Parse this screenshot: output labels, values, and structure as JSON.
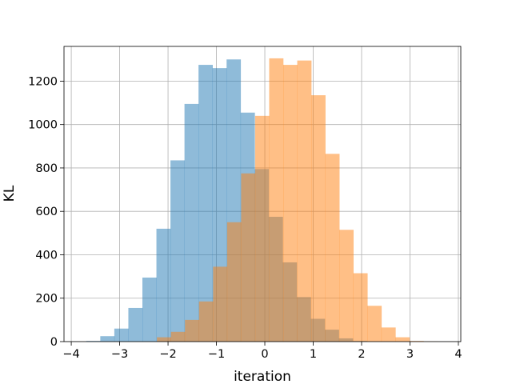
{
  "chart_data": {
    "type": "bar",
    "subtype": "overlapping-histogram",
    "title": "",
    "xlabel": "iteration",
    "ylabel": "KL",
    "xlim": [
      -4.15,
      4.05
    ],
    "ylim": [
      0,
      1360
    ],
    "xticks": [
      -4,
      -3,
      -2,
      -1,
      0,
      1,
      2,
      3,
      4
    ],
    "yticks": [
      0,
      200,
      400,
      600,
      800,
      1000,
      1200
    ],
    "grid": true,
    "legend": "none",
    "series": [
      {
        "color": "#1f77b4",
        "opacity": 0.5,
        "bin_edges": [
          -3.69,
          -3.4,
          -3.11,
          -2.82,
          -2.53,
          -2.24,
          -1.95,
          -1.66,
          -1.37,
          -1.08,
          -0.79,
          -0.5,
          -0.21,
          0.08,
          0.37,
          0.66,
          0.95,
          1.24,
          1.53,
          1.82,
          2.11
        ],
        "counts": [
          3,
          25,
          60,
          155,
          295,
          520,
          835,
          1095,
          1275,
          1260,
          1300,
          1055,
          795,
          575,
          365,
          205,
          105,
          55,
          15,
          3
        ]
      },
      {
        "color": "#ff7f0e",
        "opacity": 0.5,
        "bin_edges": [
          -2.23,
          -1.94,
          -1.65,
          -1.36,
          -1.07,
          -0.78,
          -0.49,
          -0.2,
          0.09,
          0.38,
          0.67,
          0.96,
          1.25,
          1.54,
          1.83,
          2.12,
          2.41,
          2.7,
          2.99,
          3.28,
          3.57
        ],
        "counts": [
          20,
          45,
          100,
          185,
          345,
          550,
          775,
          1040,
          1305,
          1275,
          1295,
          1135,
          865,
          515,
          315,
          165,
          65,
          20,
          3,
          1
        ]
      }
    ]
  }
}
